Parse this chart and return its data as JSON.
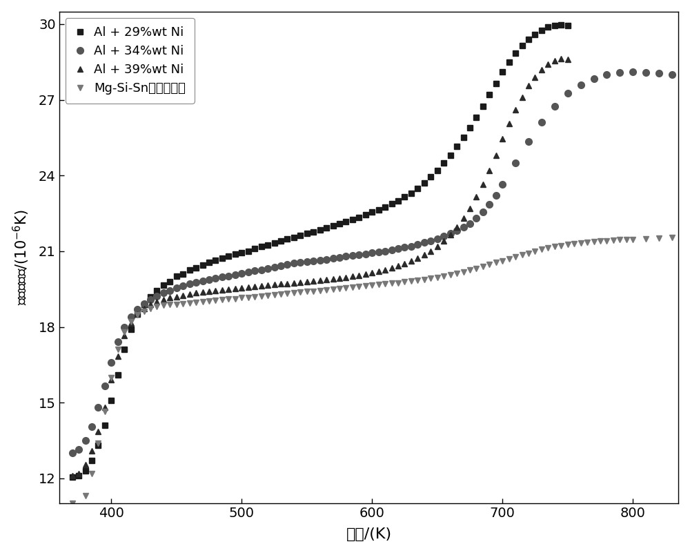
{
  "title": "",
  "xlabel": "温度/(K)",
  "ylabel": "热膚胀系数/(×10⁻⁶K)",
  "xlim": [
    360,
    835
  ],
  "ylim": [
    11.0,
    30.5
  ],
  "xticks": [
    400,
    500,
    600,
    700,
    800
  ],
  "yticks": [
    12,
    15,
    18,
    21,
    24,
    27,
    30
  ],
  "series": [
    {
      "label": "Al + 29%wt Ni",
      "marker": "s",
      "color": "#1a1a1a",
      "markersize": 6,
      "x": [
        370,
        375,
        380,
        385,
        390,
        395,
        400,
        405,
        410,
        415,
        420,
        425,
        430,
        435,
        440,
        445,
        450,
        455,
        460,
        465,
        470,
        475,
        480,
        485,
        490,
        495,
        500,
        505,
        510,
        515,
        520,
        525,
        530,
        535,
        540,
        545,
        550,
        555,
        560,
        565,
        570,
        575,
        580,
        585,
        590,
        595,
        600,
        605,
        610,
        615,
        620,
        625,
        630,
        635,
        640,
        645,
        650,
        655,
        660,
        665,
        670,
        675,
        680,
        685,
        690,
        695,
        700,
        705,
        710,
        715,
        720,
        725,
        730,
        735,
        740,
        745,
        750
      ],
      "y": [
        12.05,
        12.1,
        12.3,
        12.7,
        13.3,
        14.1,
        15.1,
        16.1,
        17.1,
        17.9,
        18.5,
        18.9,
        19.2,
        19.45,
        19.65,
        19.8,
        20.0,
        20.1,
        20.25,
        20.35,
        20.45,
        20.55,
        20.65,
        20.72,
        20.8,
        20.88,
        20.95,
        21.0,
        21.1,
        21.18,
        21.25,
        21.32,
        21.4,
        21.48,
        21.55,
        21.62,
        21.7,
        21.77,
        21.85,
        21.92,
        22.0,
        22.08,
        22.17,
        22.25,
        22.35,
        22.45,
        22.55,
        22.65,
        22.75,
        22.88,
        23.0,
        23.15,
        23.3,
        23.5,
        23.7,
        23.95,
        24.2,
        24.5,
        24.8,
        25.15,
        25.5,
        25.9,
        26.3,
        26.75,
        27.2,
        27.65,
        28.1,
        28.5,
        28.85,
        29.15,
        29.4,
        29.6,
        29.75,
        29.88,
        29.95,
        29.98,
        29.95
      ]
    },
    {
      "label": "Al + 34%wt Ni",
      "marker": "o",
      "color": "#555555",
      "markersize": 7,
      "x": [
        370,
        375,
        380,
        385,
        390,
        395,
        400,
        405,
        410,
        415,
        420,
        425,
        430,
        435,
        440,
        445,
        450,
        455,
        460,
        465,
        470,
        475,
        480,
        485,
        490,
        495,
        500,
        505,
        510,
        515,
        520,
        525,
        530,
        535,
        540,
        545,
        550,
        555,
        560,
        565,
        570,
        575,
        580,
        585,
        590,
        595,
        600,
        605,
        610,
        615,
        620,
        625,
        630,
        635,
        640,
        645,
        650,
        655,
        660,
        665,
        670,
        675,
        680,
        685,
        690,
        695,
        700,
        710,
        720,
        730,
        740,
        750,
        760,
        770,
        780,
        790,
        800,
        810,
        820,
        830
      ],
      "y": [
        13.0,
        13.15,
        13.5,
        14.05,
        14.8,
        15.65,
        16.6,
        17.4,
        18.0,
        18.4,
        18.7,
        18.92,
        19.08,
        19.22,
        19.35,
        19.45,
        19.55,
        19.63,
        19.7,
        19.77,
        19.83,
        19.88,
        19.93,
        19.98,
        20.02,
        20.07,
        20.12,
        20.17,
        20.22,
        20.27,
        20.32,
        20.37,
        20.42,
        20.47,
        20.52,
        20.55,
        20.58,
        20.61,
        20.65,
        20.68,
        20.72,
        20.75,
        20.8,
        20.83,
        20.87,
        20.9,
        20.93,
        20.97,
        21.0,
        21.05,
        21.1,
        21.15,
        21.2,
        21.27,
        21.35,
        21.42,
        21.5,
        21.6,
        21.7,
        21.82,
        21.95,
        22.1,
        22.3,
        22.55,
        22.85,
        23.2,
        23.65,
        24.5,
        25.35,
        26.1,
        26.75,
        27.25,
        27.6,
        27.85,
        28.0,
        28.08,
        28.1,
        28.08,
        28.05,
        28.0
      ]
    },
    {
      "label": "Al + 39%wt Ni",
      "marker": "^",
      "color": "#2a2a2a",
      "markersize": 6,
      "x": [
        370,
        375,
        380,
        385,
        390,
        395,
        400,
        405,
        410,
        415,
        420,
        425,
        430,
        435,
        440,
        445,
        450,
        455,
        460,
        465,
        470,
        475,
        480,
        485,
        490,
        495,
        500,
        505,
        510,
        515,
        520,
        525,
        530,
        535,
        540,
        545,
        550,
        555,
        560,
        565,
        570,
        575,
        580,
        585,
        590,
        595,
        600,
        605,
        610,
        615,
        620,
        625,
        630,
        635,
        640,
        645,
        650,
        655,
        660,
        665,
        670,
        675,
        680,
        685,
        690,
        695,
        700,
        705,
        710,
        715,
        720,
        725,
        730,
        735,
        740,
        745,
        750
      ],
      "y": [
        12.1,
        12.2,
        12.55,
        13.1,
        13.85,
        14.8,
        15.9,
        16.85,
        17.65,
        18.15,
        18.5,
        18.72,
        18.88,
        19.0,
        19.08,
        19.15,
        19.2,
        19.25,
        19.3,
        19.35,
        19.38,
        19.42,
        19.45,
        19.47,
        19.5,
        19.52,
        19.55,
        19.57,
        19.6,
        19.62,
        19.65,
        19.67,
        19.7,
        19.72,
        19.75,
        19.77,
        19.8,
        19.83,
        19.85,
        19.88,
        19.9,
        19.93,
        19.97,
        20.0,
        20.05,
        20.1,
        20.15,
        20.2,
        20.27,
        20.33,
        20.42,
        20.5,
        20.6,
        20.72,
        20.85,
        21.0,
        21.18,
        21.4,
        21.65,
        21.95,
        22.3,
        22.7,
        23.15,
        23.65,
        24.2,
        24.8,
        25.45,
        26.05,
        26.6,
        27.1,
        27.55,
        27.9,
        28.18,
        28.4,
        28.55,
        28.62,
        28.6
      ]
    },
    {
      "label": "Mg-Si-Sn基热电元件",
      "marker": "v",
      "color": "#777777",
      "markersize": 6,
      "x": [
        370,
        375,
        380,
        385,
        390,
        395,
        400,
        405,
        410,
        415,
        420,
        425,
        430,
        435,
        440,
        445,
        450,
        455,
        460,
        465,
        470,
        475,
        480,
        485,
        490,
        495,
        500,
        505,
        510,
        515,
        520,
        525,
        530,
        535,
        540,
        545,
        550,
        555,
        560,
        565,
        570,
        575,
        580,
        585,
        590,
        595,
        600,
        605,
        610,
        615,
        620,
        625,
        630,
        635,
        640,
        645,
        650,
        655,
        660,
        665,
        670,
        675,
        680,
        685,
        690,
        695,
        700,
        705,
        710,
        715,
        720,
        725,
        730,
        735,
        740,
        745,
        750,
        755,
        760,
        765,
        770,
        775,
        780,
        785,
        790,
        795,
        800,
        810,
        820,
        830
      ],
      "y": [
        11.0,
        10.75,
        11.3,
        12.2,
        13.4,
        14.65,
        16.0,
        17.1,
        17.8,
        18.2,
        18.48,
        18.62,
        18.72,
        18.8,
        18.85,
        18.88,
        18.9,
        18.93,
        18.95,
        18.98,
        19.0,
        19.02,
        19.05,
        19.08,
        19.1,
        19.12,
        19.15,
        19.17,
        19.2,
        19.22,
        19.25,
        19.27,
        19.3,
        19.32,
        19.35,
        19.37,
        19.4,
        19.42,
        19.45,
        19.47,
        19.5,
        19.52,
        19.55,
        19.57,
        19.6,
        19.62,
        19.65,
        19.67,
        19.7,
        19.73,
        19.75,
        19.78,
        19.82,
        19.85,
        19.88,
        19.92,
        19.97,
        20.02,
        20.07,
        20.12,
        20.18,
        20.25,
        20.32,
        20.4,
        20.48,
        20.55,
        20.62,
        20.7,
        20.77,
        20.85,
        20.92,
        21.0,
        21.07,
        21.13,
        21.18,
        21.22,
        21.27,
        21.3,
        21.33,
        21.36,
        21.38,
        21.4,
        21.42,
        21.43,
        21.45,
        21.46,
        21.47,
        21.5,
        21.52,
        21.55
      ]
    }
  ],
  "legend_loc": "upper left",
  "background_color": "#ffffff",
  "spine_color": "#000000"
}
